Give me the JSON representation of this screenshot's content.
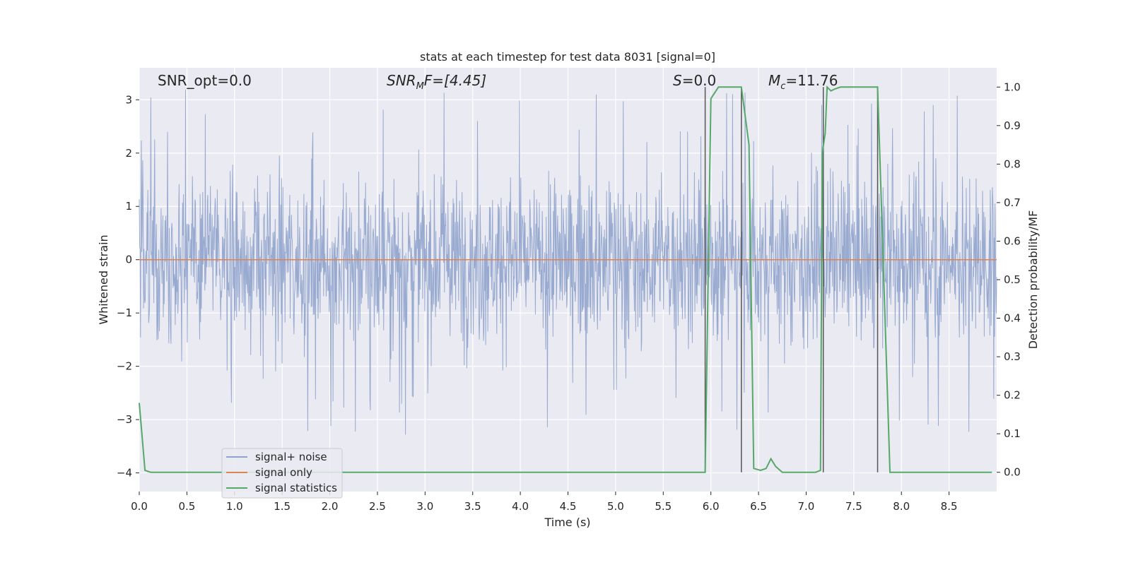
{
  "chart_data": {
    "type": "line",
    "title": "stats at each timestep for test data 8031 [signal=0]",
    "xlabel": "Time (s)",
    "ylabel": "Whitened strain",
    "ylabel_right": "Detection probability/MF",
    "xlim": [
      0.0,
      9.0
    ],
    "ylim": [
      -4.35,
      3.6
    ],
    "ylim_right": [
      -0.05,
      1.05
    ],
    "x_ticks": [
      "0.0",
      "0.5",
      "1.0",
      "1.5",
      "2.0",
      "2.5",
      "3.0",
      "3.5",
      "4.0",
      "4.5",
      "5.0",
      "5.5",
      "6.0",
      "6.5",
      "7.0",
      "7.5",
      "8.0",
      "8.5"
    ],
    "y_ticks": [
      "3",
      "2",
      "1",
      "0",
      "−1",
      "−2",
      "−3",
      "−4"
    ],
    "y_right_ticks": [
      "1.0",
      "0.9",
      "0.8",
      "0.7",
      "0.6",
      "0.5",
      "0.4",
      "0.3",
      "0.2",
      "0.1",
      "0.0"
    ],
    "grid": true,
    "legend_position": "lower-left",
    "annotations": {
      "snr_opt": "SNR_opt=0.0",
      "snr_mf_main": "SNR",
      "snr_mf_sub": "M",
      "snr_mf_rest": "F=[4.45]",
      "s_main": "S",
      "s_rest": "=0.0",
      "mc_main": "M",
      "mc_sub": "c",
      "mc_rest": "=11.76"
    },
    "series": [
      {
        "name": "signal+ noise",
        "color": "#8fa3cc",
        "description_values": "whitened noise, amplitude approx within [-2.0, 2.0] with spikes to ±3.3"
      },
      {
        "name": "signal only",
        "color": "#dd8452",
        "values_constant": 0.0
      },
      {
        "name": "signal statistics",
        "color": "#55a868",
        "axis": "right",
        "x": [
          0.0,
          0.06,
          0.12,
          5.92,
          5.94,
          6.0,
          6.08,
          6.3,
          6.32,
          6.4,
          6.45,
          6.52,
          6.58,
          6.63,
          6.68,
          6.75,
          6.85,
          7.1,
          7.15,
          7.17,
          7.2,
          7.22,
          7.26,
          7.3,
          7.36,
          7.75,
          7.77,
          7.88,
          8.95
        ],
        "y": [
          0.18,
          0.005,
          0.0,
          0.0,
          0.0,
          0.97,
          1.0,
          1.0,
          1.0,
          0.85,
          0.01,
          0.005,
          0.01,
          0.035,
          0.015,
          0.0,
          0.0,
          0.0,
          0.005,
          0.83,
          0.88,
          1.0,
          0.99,
          0.995,
          1.0,
          1.0,
          0.85,
          0.0,
          0.0
        ]
      }
    ],
    "markers_x": [
      5.94,
      6.32,
      7.18,
      7.75
    ]
  }
}
